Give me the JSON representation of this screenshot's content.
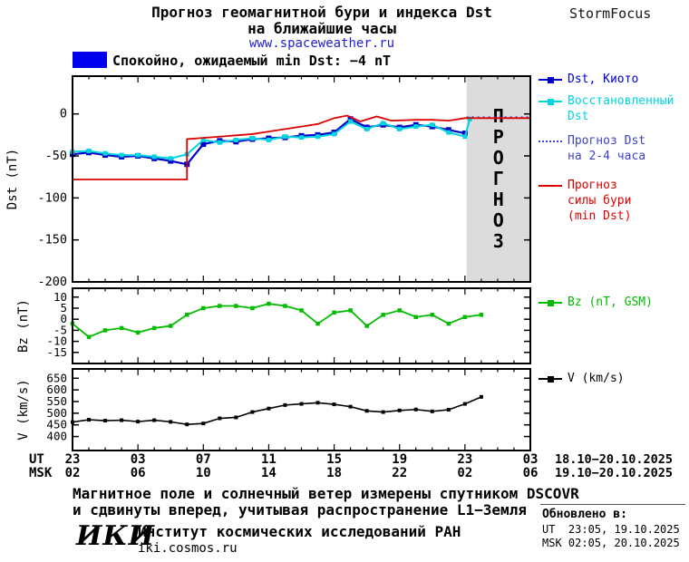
{
  "header": {
    "title_line1": "Прогноз геомагнитной бури и индекса Dst",
    "title_line2": "на ближайшие часы",
    "site_link": "www.spaceweather.ru",
    "brand": "StormFocus"
  },
  "status": {
    "text": "Спокойно, ожидаемый min Dst: −4 nT",
    "box_color": "#0000ee"
  },
  "legend": {
    "dst_kyoto": "Dst, Киото",
    "dst_restored": "Восстановленный Dst",
    "dst_forecast": "Прогноз Dst на 2-4 часа",
    "storm_forecast": "Прогноз силы бури (min Dst)",
    "bz": "Bz (nT, GSM)",
    "v": "V (km/s)"
  },
  "xaxis": {
    "ut_row_label": "UT",
    "msk_row_label": "MSK",
    "tick_hours": [
      0,
      4,
      8,
      12,
      16,
      20,
      24,
      28
    ],
    "ut_labels": [
      "23",
      "03",
      "07",
      "11",
      "15",
      "19",
      "23",
      "03"
    ],
    "msk_labels": [
      "02",
      "06",
      "10",
      "14",
      "18",
      "22",
      "02",
      "06"
    ],
    "ut_date_range": "18.10−20.10.2025",
    "msk_date_range": "19.10−20.10.2025"
  },
  "footer": {
    "note_line1": "Магнитное поле и солнечный ветер измерены спутником DSCOVR",
    "note_line2": "и сдвинуты вперед, учитывая распространение L1−Земля",
    "logo": "ИКИ",
    "institute": "Институт космических исследований РАН",
    "institute_site": "iki.cosmos.ru",
    "updated_label": "Обновлено в:",
    "updated_ut": "UT  23:05, 19.10.2025",
    "updated_msk": "MSK 02:05, 20.10.2025"
  },
  "chart_data": [
    {
      "type": "line",
      "ylabel": "Dst (nT)",
      "xlim_hours": [
        0,
        28
      ],
      "ylim": [
        -200,
        45
      ],
      "yticks": [
        0,
        -50,
        -100,
        -150,
        -200
      ],
      "forecast_region_start_hour": 24.1,
      "forecast_region_color": "#dcdcdc",
      "forecast_label": "ПРОГНОЗ",
      "series": [
        {
          "name": "Dst, Киото",
          "color": "#0000cd",
          "width": 2.2,
          "marker": "square",
          "marker_size": 6,
          "points": [
            [
              0,
              -48
            ],
            [
              1,
              -46
            ],
            [
              2,
              -49
            ],
            [
              3,
              -51
            ],
            [
              4,
              -50
            ],
            [
              5,
              -53
            ],
            [
              6,
              -56
            ],
            [
              7,
              -60
            ],
            [
              8,
              -36
            ],
            [
              9,
              -32
            ],
            [
              10,
              -33
            ],
            [
              11,
              -30
            ],
            [
              12,
              -29
            ],
            [
              13,
              -28
            ],
            [
              14,
              -26
            ],
            [
              15,
              -25
            ],
            [
              16,
              -22
            ],
            [
              17,
              -6
            ],
            [
              18,
              -16
            ],
            [
              19,
              -13
            ],
            [
              20,
              -16
            ],
            [
              21,
              -13
            ],
            [
              22,
              -15
            ],
            [
              23,
              -19
            ],
            [
              24,
              -23
            ]
          ]
        },
        {
          "name": "Восстановленный Dst",
          "color": "#00d5e0",
          "width": 2,
          "marker": "square",
          "marker_size": 5,
          "points": [
            [
              0,
              -45
            ],
            [
              1,
              -44
            ],
            [
              2,
              -47
            ],
            [
              3,
              -49
            ],
            [
              4,
              -49
            ],
            [
              5,
              -51
            ],
            [
              6,
              -53
            ],
            [
              7,
              -48
            ],
            [
              8,
              -31
            ],
            [
              9,
              -34
            ],
            [
              10,
              -31
            ],
            [
              11,
              -29
            ],
            [
              12,
              -31
            ],
            [
              13,
              -27
            ],
            [
              14,
              -28
            ],
            [
              15,
              -27
            ],
            [
              16,
              -24
            ],
            [
              17,
              -9
            ],
            [
              18,
              -18
            ],
            [
              19,
              -11
            ],
            [
              20,
              -18
            ],
            [
              21,
              -15
            ],
            [
              22,
              -13
            ],
            [
              23,
              -22
            ],
            [
              24,
              -27
            ],
            [
              24.3,
              -6
            ]
          ]
        },
        {
          "name": "Прогноз Dst на 2-4 часа",
          "color": "#4040cc",
          "width": 2,
          "dash": "dotted",
          "points": [
            [
              24.1,
              -4
            ],
            [
              28,
              -4
            ]
          ]
        },
        {
          "name": "Прогноз силы бури (min Dst)",
          "color": "#dd0000",
          "width": 1.8,
          "points": [
            [
              0,
              -78
            ],
            [
              7,
              -78
            ],
            [
              7,
              -30
            ],
            [
              9,
              -27
            ],
            [
              11,
              -24
            ],
            [
              12,
              -21
            ],
            [
              13,
              -18
            ],
            [
              14,
              -15
            ],
            [
              15,
              -12
            ],
            [
              16,
              -5
            ],
            [
              16.8,
              -2
            ],
            [
              17.6,
              -9
            ],
            [
              18.6,
              -3
            ],
            [
              19.5,
              -8
            ],
            [
              21,
              -7
            ],
            [
              22,
              -7
            ],
            [
              23,
              -8
            ],
            [
              24,
              -5
            ],
            [
              28,
              -5
            ]
          ]
        }
      ]
    },
    {
      "type": "line",
      "ylabel": "Bz (nT)",
      "xlim_hours": [
        0,
        28
      ],
      "ylim": [
        -20,
        14
      ],
      "yticks": [
        10,
        5,
        0,
        -5,
        -10,
        -15
      ],
      "series": [
        {
          "name": "Bz (nT, GSM)",
          "color": "#00bb00",
          "width": 1.8,
          "marker": "square",
          "marker_size": 4.5,
          "points": [
            [
              0,
              -2
            ],
            [
              1,
              -8
            ],
            [
              2,
              -5
            ],
            [
              3,
              -4
            ],
            [
              4,
              -6
            ],
            [
              5,
              -4
            ],
            [
              6,
              -3
            ],
            [
              7,
              2
            ],
            [
              8,
              5
            ],
            [
              9,
              6
            ],
            [
              10,
              6
            ],
            [
              11,
              5
            ],
            [
              12,
              7
            ],
            [
              13,
              6
            ],
            [
              14,
              4
            ],
            [
              15,
              -2
            ],
            [
              16,
              3
            ],
            [
              17,
              4
            ],
            [
              18,
              -3
            ],
            [
              19,
              2
            ],
            [
              20,
              4
            ],
            [
              21,
              1
            ],
            [
              22,
              2
            ],
            [
              23,
              -2
            ],
            [
              24,
              1
            ],
            [
              25,
              2
            ]
          ]
        }
      ]
    },
    {
      "type": "line",
      "ylabel": "V (km/s)",
      "xlim_hours": [
        0,
        28
      ],
      "ylim": [
        340,
        690
      ],
      "yticks": [
        650,
        600,
        550,
        500,
        450,
        400
      ],
      "series": [
        {
          "name": "V (km/s)",
          "color": "#000000",
          "width": 1.6,
          "marker": "square",
          "marker_size": 4,
          "points": [
            [
              0,
              462
            ],
            [
              1,
              472
            ],
            [
              2,
              468
            ],
            [
              3,
              470
            ],
            [
              4,
              464
            ],
            [
              5,
              470
            ],
            [
              6,
              463
            ],
            [
              7,
              452
            ],
            [
              8,
              456
            ],
            [
              9,
              478
            ],
            [
              10,
              482
            ],
            [
              11,
              505
            ],
            [
              12,
              520
            ],
            [
              13,
              535
            ],
            [
              14,
              540
            ],
            [
              15,
              545
            ],
            [
              16,
              538
            ],
            [
              17,
              528
            ],
            [
              18,
              510
            ],
            [
              19,
              505
            ],
            [
              20,
              512
            ],
            [
              21,
              516
            ],
            [
              22,
              508
            ],
            [
              23,
              515
            ],
            [
              24,
              540
            ],
            [
              25,
              570
            ]
          ]
        }
      ]
    }
  ]
}
